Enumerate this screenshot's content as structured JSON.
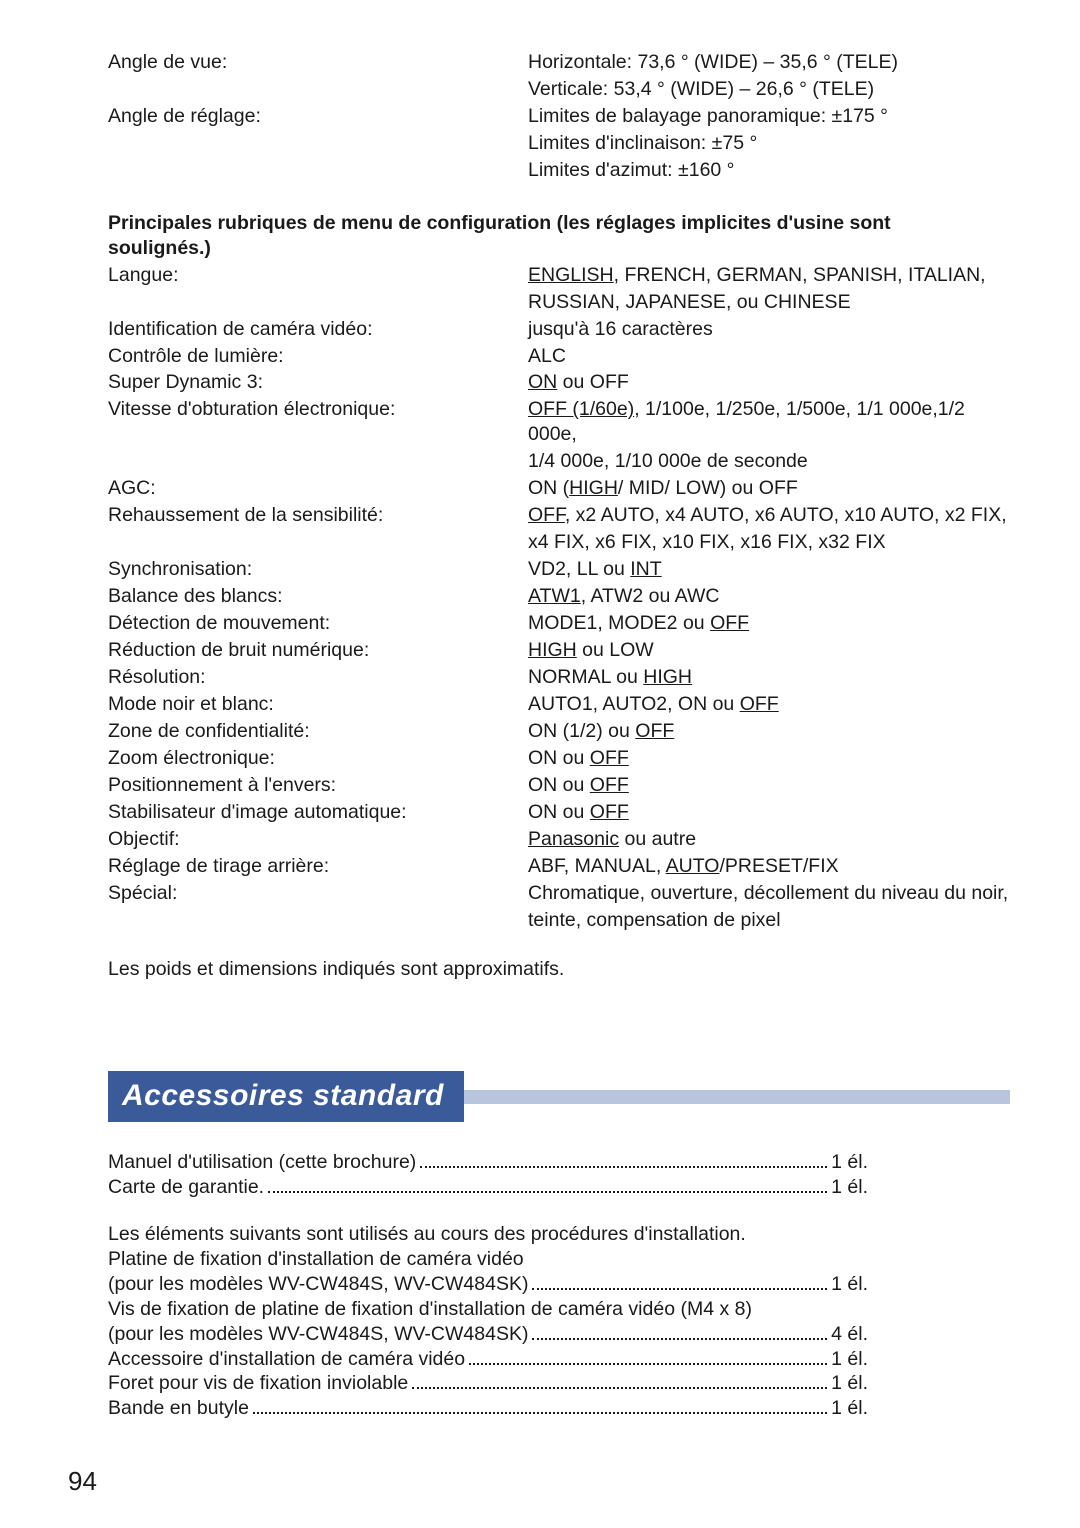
{
  "top_specs": {
    "rows": [
      {
        "label": "Angle de vue:",
        "value": "Horizontale:  73,6 ° (WIDE) – 35,6 ° (TELE)"
      },
      {
        "label": "",
        "value": "Verticale:      53,4 ° (WIDE) – 26,6 ° (TELE)"
      },
      {
        "label": "Angle de réglage:",
        "value": "Limites de balayage panoramique: ±175 °"
      },
      {
        "label": "",
        "value": "Limites d'inclinaison: ±75 °"
      },
      {
        "label": "",
        "value": "Limites d'azimut: ±160 °"
      }
    ]
  },
  "menu_section": {
    "title_line1": "Principales rubriques de menu de configuration (les réglages implicites d'usine sont",
    "title_line2": "soulignés.)",
    "rows": [
      {
        "label": "Langue:",
        "value_parts": [
          {
            "t": "ENGLISH",
            "u": true
          },
          {
            "t": ", FRENCH, GERMAN, SPANISH, ITALIAN,"
          }
        ]
      },
      {
        "label": "",
        "value_parts": [
          {
            "t": "RUSSIAN, JAPANESE, ou CHINESE"
          }
        ]
      },
      {
        "label": "Identification de caméra vidéo:",
        "value_parts": [
          {
            "t": "jusqu'à 16 caractères"
          }
        ]
      },
      {
        "label": "Contrôle de lumière:",
        "value_parts": [
          {
            "t": "ALC"
          }
        ]
      },
      {
        "label": "Super Dynamic 3:",
        "value_parts": [
          {
            "t": "ON",
            "u": true
          },
          {
            "t": " ou OFF"
          }
        ]
      },
      {
        "label": "Vitesse d'obturation électronique:",
        "value_parts": [
          {
            "t": "OFF (1/60e)",
            "u": true
          },
          {
            "t": ", 1/100e, 1/250e, 1/500e, 1/1 000e,1/2 000e,"
          }
        ]
      },
      {
        "label": "",
        "value_parts": [
          {
            "t": "1/4 000e, 1/10 000e de seconde"
          }
        ]
      },
      {
        "label": "AGC:",
        "value_parts": [
          {
            "t": "ON ("
          },
          {
            "t": "HIGH",
            "u": true
          },
          {
            "t": "/ MID/ LOW) ou OFF"
          }
        ]
      },
      {
        "label": "Rehaussement de la sensibilité:",
        "value_parts": [
          {
            "t": "OFF",
            "u": true
          },
          {
            "t": ", x2 AUTO, x4 AUTO, x6 AUTO, x10 AUTO, x2 FIX,"
          }
        ]
      },
      {
        "label": "",
        "value_parts": [
          {
            "t": "x4 FIX, x6 FIX, x10 FIX, x16 FIX, x32 FIX"
          }
        ]
      },
      {
        "label": "Synchronisation:",
        "value_parts": [
          {
            "t": "VD2, LL ou "
          },
          {
            "t": "INT",
            "u": true
          }
        ]
      },
      {
        "label": "Balance des blancs:",
        "value_parts": [
          {
            "t": "ATW1",
            "u": true
          },
          {
            "t": ", ATW2 ou AWC"
          }
        ]
      },
      {
        "label": "Détection de mouvement:",
        "value_parts": [
          {
            "t": "MODE1, MODE2 ou "
          },
          {
            "t": "OFF",
            "u": true
          }
        ]
      },
      {
        "label": "Réduction de bruit numérique:",
        "value_parts": [
          {
            "t": "HIGH",
            "u": true
          },
          {
            "t": " ou LOW"
          }
        ]
      },
      {
        "label": "Résolution:",
        "value_parts": [
          {
            "t": "NORMAL ou "
          },
          {
            "t": "HIGH",
            "u": true
          }
        ]
      },
      {
        "label": "Mode noir et blanc:",
        "value_parts": [
          {
            "t": "AUTO1, AUTO2, ON ou "
          },
          {
            "t": "OFF",
            "u": true
          }
        ]
      },
      {
        "label": "Zone de confidentialité:",
        "value_parts": [
          {
            "t": "ON (1/2) ou "
          },
          {
            "t": "OFF",
            "u": true
          }
        ]
      },
      {
        "label": "Zoom électronique:",
        "value_parts": [
          {
            "t": "ON ou "
          },
          {
            "t": "OFF",
            "u": true
          }
        ]
      },
      {
        "label": "Positionnement à l'envers:",
        "value_parts": [
          {
            "t": "ON ou "
          },
          {
            "t": "OFF",
            "u": true
          }
        ]
      },
      {
        "label": "Stabilisateur d'image automatique:",
        "value_parts": [
          {
            "t": "ON ou "
          },
          {
            "t": "OFF",
            "u": true
          }
        ]
      },
      {
        "label": "Objectif:",
        "value_parts": [
          {
            "t": "Panasonic",
            "u": true
          },
          {
            "t": " ou autre"
          }
        ]
      },
      {
        "label": "Réglage de tirage arrière:",
        "value_parts": [
          {
            "t": "ABF, MANUAL, "
          },
          {
            "t": "AUTO",
            "u": true
          },
          {
            "t": "/PRESET/FIX"
          }
        ]
      },
      {
        "label": "Spécial:",
        "value_parts": [
          {
            "t": "Chromatique, ouverture, décollement du niveau du noir,"
          }
        ]
      },
      {
        "label": "",
        "value_parts": [
          {
            "t": "teinte, compensation de pixel"
          }
        ]
      }
    ],
    "footer": "Les poids et dimensions indiqués sont approximatifs."
  },
  "accessories": {
    "title": "Accessoires standard",
    "items_top": [
      {
        "left": "Manuel d'utilisation (cette brochure) ",
        "right": " 1 él."
      },
      {
        "left": "Carte de garantie. ",
        "right": " 1 él."
      }
    ],
    "intro1": "Les éléments suivants sont utilisés au cours des procédures d'installation.",
    "intro2": "Platine de fixation d'installation de caméra vidéo",
    "items_bottom": [
      {
        "left": "(pour les modèles WV-CW484S, WV-CW484SK) ",
        "right": " 1 él."
      },
      {
        "left_pre": "Vis de fixation de platine de fixation d'installation de caméra vidéo (M4 x 8)",
        "left": "(pour les modèles WV-CW484S, WV-CW484SK) ",
        "right": " 4 él."
      },
      {
        "left": "Accessoire d'installation de caméra vidéo ",
        "right": " 1 él."
      },
      {
        "left": "Foret pour vis de fixation inviolable ",
        "right": " 1 él."
      },
      {
        "left": "Bande en butyle ",
        "right": " 1 él."
      }
    ]
  },
  "page_number": "94",
  "colors": {
    "text": "#1a1a1a",
    "bar_bg": "#3a5a9a",
    "bar_tail": "#b9c5dd",
    "bar_text": "#ffffff"
  }
}
